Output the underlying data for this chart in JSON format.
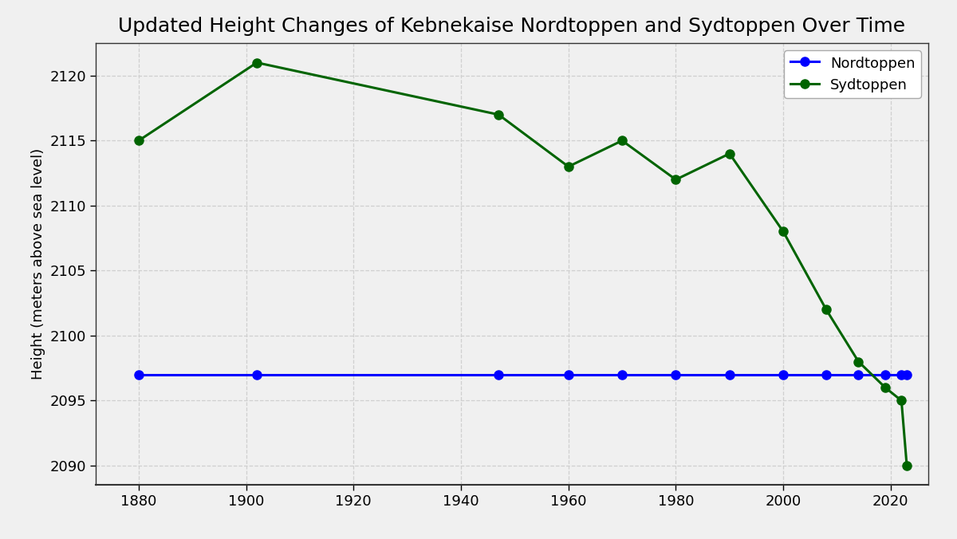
{
  "title": "Updated Height Changes of Kebnekaise Nordtoppen and Sydtoppen Over Time",
  "ylabel": "Height (meters above sea level)",
  "nordtoppen_years": [
    1880,
    1902,
    1947,
    1960,
    1970,
    1980,
    1990,
    2000,
    2008,
    2014,
    2019,
    2022,
    2023
  ],
  "nordtoppen_heights": [
    2097,
    2097,
    2097,
    2097,
    2097,
    2097,
    2097,
    2097,
    2097,
    2097,
    2097,
    2097,
    2097
  ],
  "sydtoppen_years": [
    1880,
    1902,
    1947,
    1960,
    1970,
    1980,
    1990,
    2000,
    2008,
    2014,
    2019,
    2022,
    2023
  ],
  "sydtoppen_heights": [
    2115,
    2121,
    2117,
    2113,
    2115,
    2112,
    2114,
    2108,
    2102,
    2098,
    2096,
    2095,
    2090
  ],
  "nordtoppen_color": "#0000ff",
  "sydtoppen_color": "#006400",
  "background_color": "#f0f0f0",
  "plot_bg_color": "#f0f0f0",
  "grid_color": "#d0d0d0",
  "ylim": [
    2088.5,
    2122.5
  ],
  "xlim": [
    1872,
    2027
  ],
  "xticks": [
    1880,
    1900,
    1920,
    1940,
    1960,
    1980,
    2000,
    2020
  ],
  "yticks": [
    2090,
    2095,
    2100,
    2105,
    2110,
    2115,
    2120
  ],
  "title_fontsize": 18,
  "axis_label_fontsize": 13,
  "tick_fontsize": 13,
  "legend_fontsize": 13,
  "linewidth": 2.2,
  "markersize": 8
}
